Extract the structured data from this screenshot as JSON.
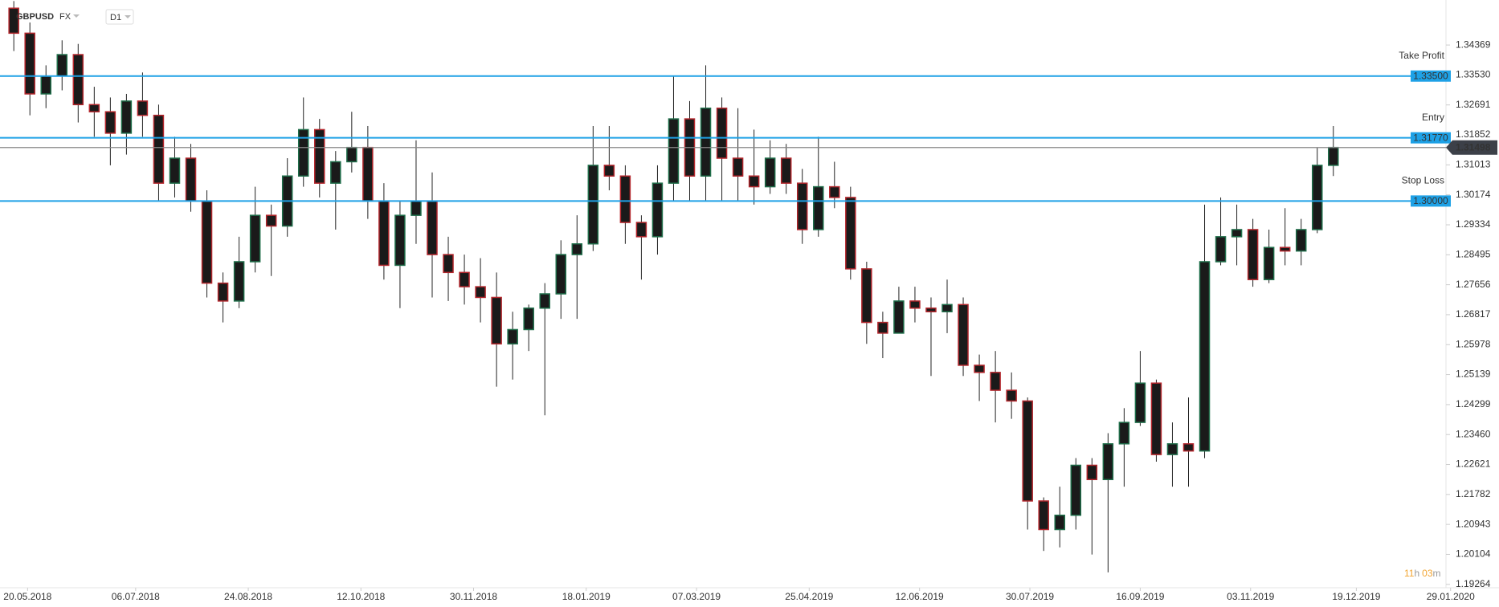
{
  "chart_data": {
    "type": "candlestick",
    "symbol": "GBPUSD",
    "market": "FX",
    "interval": "D1",
    "timer": [
      "11",
      "h",
      "03",
      "m"
    ],
    "up_color": "#1f6e4a",
    "down_color": "#b3262c",
    "x": [
      "14.05.2018",
      "21.05.2018",
      "28.05.2018",
      "04.06.2018",
      "11.06.2018",
      "18.06.2018",
      "25.06.2018",
      "02.07.2018",
      "09.07.2018",
      "16.07.2018",
      "23.07.2018",
      "30.07.2018",
      "06.08.2018",
      "13.08.2018",
      "20.08.2018",
      "27.08.2018",
      "03.09.2018",
      "10.09.2018",
      "17.09.2018",
      "24.09.2018",
      "01.10.2018",
      "08.10.2018",
      "15.10.2018",
      "22.10.2018",
      "29.10.2018",
      "05.11.2018",
      "12.11.2018",
      "19.11.2018",
      "26.11.2018",
      "03.12.2018",
      "10.12.2018",
      "17.12.2018",
      "24.12.2018",
      "31.12.2018",
      "07.01.2019",
      "14.01.2019",
      "21.01.2019",
      "28.01.2019",
      "04.02.2019",
      "11.02.2019",
      "18.02.2019",
      "25.02.2019",
      "04.03.2019",
      "11.03.2019",
      "18.03.2019",
      "25.03.2019",
      "01.04.2019",
      "08.04.2019",
      "15.04.2019",
      "22.04.2019",
      "29.04.2019",
      "06.05.2019",
      "13.05.2019",
      "20.05.2019",
      "27.05.2019",
      "03.06.2019",
      "10.06.2019",
      "17.06.2019",
      "24.06.2019",
      "01.07.2019",
      "08.07.2019",
      "15.07.2019",
      "22.07.2019",
      "29.07.2019",
      "05.08.2019",
      "12.08.2019",
      "19.08.2019",
      "26.08.2019",
      "02.09.2019",
      "09.09.2019",
      "16.09.2019",
      "23.09.2019",
      "30.09.2019",
      "07.10.2019",
      "14.10.2019",
      "21.10.2019",
      "28.10.2019",
      "04.11.2019",
      "11.11.2019",
      "18.11.2019",
      "25.11.2019",
      "02.12.2019",
      "09.12.2019"
    ],
    "open": [
      1.354,
      1.347,
      1.33,
      1.335,
      1.341,
      1.327,
      1.325,
      1.319,
      1.328,
      1.324,
      1.305,
      1.312,
      1.3,
      1.277,
      1.272,
      1.283,
      1.296,
      1.293,
      1.307,
      1.32,
      1.305,
      1.311,
      1.315,
      1.3,
      1.282,
      1.296,
      1.3,
      1.285,
      1.28,
      1.276,
      1.273,
      1.26,
      1.264,
      1.27,
      1.274,
      1.285,
      1.288,
      1.31,
      1.307,
      1.294,
      1.29,
      1.305,
      1.323,
      1.307,
      1.326,
      1.312,
      1.307,
      1.304,
      1.312,
      1.305,
      1.292,
      1.304,
      1.301,
      1.281,
      1.266,
      1.263,
      1.272,
      1.27,
      1.269,
      1.271,
      1.254,
      1.252,
      1.247,
      1.244,
      1.216,
      1.208,
      1.212,
      1.226,
      1.222,
      1.232,
      1.238,
      1.249,
      1.229,
      1.232,
      1.23,
      1.283,
      1.29,
      1.292,
      1.278,
      1.287,
      1.286,
      1.292,
      1.31
    ],
    "high": [
      1.356,
      1.35,
      1.338,
      1.345,
      1.344,
      1.332,
      1.329,
      1.33,
      1.336,
      1.327,
      1.318,
      1.316,
      1.303,
      1.28,
      1.29,
      1.304,
      1.299,
      1.312,
      1.329,
      1.323,
      1.314,
      1.325,
      1.321,
      1.305,
      1.3,
      1.317,
      1.308,
      1.29,
      1.285,
      1.284,
      1.28,
      1.269,
      1.271,
      1.277,
      1.289,
      1.296,
      1.321,
      1.321,
      1.31,
      1.296,
      1.31,
      1.335,
      1.328,
      1.338,
      1.329,
      1.326,
      1.32,
      1.317,
      1.316,
      1.309,
      1.318,
      1.311,
      1.304,
      1.283,
      1.269,
      1.276,
      1.276,
      1.273,
      1.278,
      1.273,
      1.257,
      1.258,
      1.252,
      1.245,
      1.217,
      1.22,
      1.228,
      1.228,
      1.235,
      1.242,
      1.258,
      1.25,
      1.238,
      1.245,
      1.299,
      1.301,
      1.299,
      1.295,
      1.292,
      1.298,
      1.295,
      1.315,
      1.321
    ],
    "low": [
      1.342,
      1.324,
      1.326,
      1.331,
      1.322,
      1.318,
      1.31,
      1.313,
      1.318,
      1.3,
      1.301,
      1.297,
      1.273,
      1.266,
      1.27,
      1.28,
      1.279,
      1.29,
      1.304,
      1.301,
      1.292,
      1.308,
      1.295,
      1.278,
      1.27,
      1.288,
      1.273,
      1.272,
      1.271,
      1.266,
      1.248,
      1.25,
      1.258,
      1.24,
      1.267,
      1.267,
      1.286,
      1.303,
      1.288,
      1.278,
      1.285,
      1.3,
      1.3,
      1.3,
      1.3,
      1.3,
      1.299,
      1.302,
      1.302,
      1.288,
      1.29,
      1.298,
      1.278,
      1.26,
      1.256,
      1.264,
      1.266,
      1.251,
      1.263,
      1.251,
      1.244,
      1.238,
      1.239,
      1.208,
      1.202,
      1.203,
      1.208,
      1.201,
      1.196,
      1.22,
      1.237,
      1.227,
      1.22,
      1.22,
      1.228,
      1.282,
      1.282,
      1.276,
      1.277,
      1.282,
      1.282,
      1.291,
      1.307
    ],
    "close": [
      1.347,
      1.33,
      1.335,
      1.341,
      1.327,
      1.325,
      1.319,
      1.328,
      1.324,
      1.305,
      1.312,
      1.3,
      1.277,
      1.272,
      1.283,
      1.296,
      1.293,
      1.307,
      1.32,
      1.305,
      1.311,
      1.315,
      1.3,
      1.282,
      1.296,
      1.3,
      1.285,
      1.28,
      1.276,
      1.273,
      1.26,
      1.264,
      1.27,
      1.274,
      1.285,
      1.288,
      1.31,
      1.307,
      1.294,
      1.29,
      1.305,
      1.323,
      1.307,
      1.326,
      1.312,
      1.307,
      1.304,
      1.312,
      1.305,
      1.292,
      1.304,
      1.301,
      1.281,
      1.266,
      1.263,
      1.272,
      1.27,
      1.269,
      1.271,
      1.254,
      1.252,
      1.247,
      1.244,
      1.216,
      1.208,
      1.212,
      1.226,
      1.222,
      1.232,
      1.238,
      1.249,
      1.229,
      1.232,
      1.23,
      1.283,
      1.29,
      1.292,
      1.278,
      1.287,
      1.286,
      1.292,
      1.31,
      1.315
    ],
    "xlim": [
      "08.05.2018",
      "27.01.2020"
    ],
    "xticks": [
      "20.05.2018",
      "06.07.2018",
      "24.08.2018",
      "12.10.2018",
      "30.11.2018",
      "18.01.2019",
      "07.03.2019",
      "25.04.2019",
      "12.06.2019",
      "30.07.2019",
      "16.09.2019",
      "03.11.2019",
      "19.12.2019",
      "29.01.2020"
    ],
    "ylim": [
      1.1917,
      1.3563
    ],
    "yticks": [
      {
        "value": 1.34369,
        "label": "1.34369"
      },
      {
        "value": 1.3353,
        "label": "1.33530"
      },
      {
        "value": 1.32691,
        "label": "1.32691"
      },
      {
        "value": 1.31852,
        "label": "1.31852"
      },
      {
        "value": 1.31013,
        "label": "1.31013"
      },
      {
        "value": 1.30174,
        "label": "1.30174"
      },
      {
        "value": 1.29334,
        "label": "1.29334"
      },
      {
        "value": 1.28495,
        "label": "1.28495"
      },
      {
        "value": 1.27656,
        "label": "1.27656"
      },
      {
        "value": 1.26817,
        "label": "1.26817"
      },
      {
        "value": 1.25978,
        "label": "1.25978"
      },
      {
        "value": 1.25139,
        "label": "1.25139"
      },
      {
        "value": 1.24299,
        "label": "1.24299"
      },
      {
        "value": 1.2346,
        "label": "1.23460"
      },
      {
        "value": 1.22621,
        "label": "1.22621"
      },
      {
        "value": 1.21782,
        "label": "1.21782"
      },
      {
        "value": 1.20943,
        "label": "1.20943"
      },
      {
        "value": 1.20104,
        "label": "1.20104"
      },
      {
        "value": 1.19264,
        "label": "1.19264"
      }
    ],
    "levels": [
      {
        "name": "Take Profit",
        "value": 1.335,
        "value_label": "1.33500",
        "color": "#1ea1e6"
      },
      {
        "name": "Entry",
        "value": 1.3177,
        "value_label": "1.31770",
        "color": "#1ea1e6"
      },
      {
        "name": "Stop Loss",
        "value": 1.3,
        "value_label": "1.30000",
        "color": "#1ea1e6"
      }
    ],
    "current": {
      "value": 1.31498,
      "value_label": "1.31498",
      "color": "#3c4048"
    }
  }
}
